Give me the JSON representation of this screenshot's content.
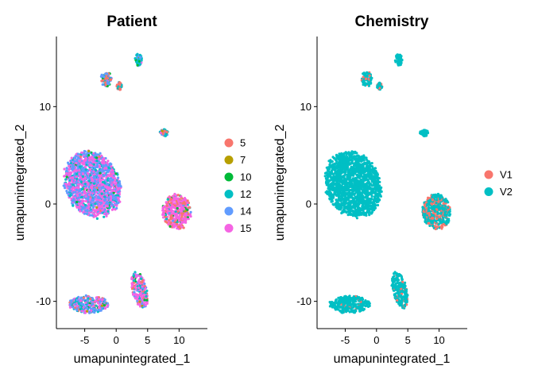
{
  "chart_data": [
    {
      "type": "scatter",
      "title": "Patient",
      "xlabel": "umapunintegrated_1",
      "ylabel": "umapunintegrated_2",
      "xlim": [
        -9.5,
        14.5
      ],
      "ylim": [
        -12.8,
        17.2
      ],
      "xticks": [
        "-5",
        "0",
        "5",
        "10"
      ],
      "xtick_values": [
        -5,
        0,
        5,
        10
      ],
      "yticks": [
        "-10",
        "0",
        "10"
      ],
      "ytick_values": [
        -10,
        0,
        10
      ],
      "legend_position": "right",
      "groups": [
        {
          "label": "5",
          "color": "#F8766D"
        },
        {
          "label": "7",
          "color": "#B79F00"
        },
        {
          "label": "10",
          "color": "#00BA38"
        },
        {
          "label": "12",
          "color": "#00BFC4"
        },
        {
          "label": "14",
          "color": "#619CFF"
        },
        {
          "label": "15",
          "color": "#F564E3"
        }
      ],
      "clusters": [
        {
          "name": "large-left",
          "cx": -3.8,
          "cy": 2.0,
          "rx": 4.6,
          "ry": 3.3,
          "rot": -0.25,
          "mix": [
            0.01,
            0.005,
            0.02,
            0.12,
            0.4,
            0.445
          ]
        },
        {
          "name": "right",
          "cx": 9.6,
          "cy": -0.8,
          "rx": 2.3,
          "ry": 1.8,
          "rot": 0,
          "mix": [
            0.3,
            0.02,
            0.05,
            0.03,
            0.05,
            0.55
          ]
        },
        {
          "name": "bottom-left",
          "cx": -4.3,
          "cy": -10.3,
          "rx": 3.2,
          "ry": 0.9,
          "rot": 0,
          "mix": [
            0.1,
            0.02,
            0.04,
            0.15,
            0.4,
            0.29
          ]
        },
        {
          "name": "bottom-right",
          "cx": 3.7,
          "cy": -8.8,
          "rx": 1.1,
          "ry": 2.0,
          "rot": 0.45,
          "mix": [
            0.1,
            0.02,
            0.1,
            0.15,
            0.2,
            0.43
          ]
        },
        {
          "name": "top-left",
          "cx": -1.6,
          "cy": 12.8,
          "rx": 0.85,
          "ry": 0.8,
          "rot": 0,
          "mix": [
            0.25,
            0.02,
            0.1,
            0.25,
            0.35,
            0.03
          ]
        },
        {
          "name": "top-right",
          "cx": 3.5,
          "cy": 14.8,
          "rx": 0.6,
          "ry": 0.6,
          "rot": 0,
          "mix": [
            0.05,
            0.02,
            0.1,
            0.55,
            0.25,
            0.03
          ]
        },
        {
          "name": "mid-small",
          "cx": 7.6,
          "cy": 7.3,
          "rx": 0.7,
          "ry": 0.35,
          "rot": 0,
          "mix": [
            0.3,
            0.05,
            0.05,
            0.4,
            0.15,
            0.05
          ]
        },
        {
          "name": "small-upper-left",
          "cx": 0.5,
          "cy": 12.1,
          "rx": 0.4,
          "ry": 0.4,
          "rot": 0,
          "mix": [
            0.6,
            0.02,
            0.05,
            0.15,
            0.15,
            0.03
          ]
        }
      ]
    },
    {
      "type": "scatter",
      "title": "Chemistry",
      "xlabel": "umapunintegrated_1",
      "ylabel": "umapunintegrated_2",
      "xlim": [
        -9.5,
        14.5
      ],
      "ylim": [
        -12.8,
        17.2
      ],
      "xticks": [
        "-5",
        "0",
        "5",
        "10"
      ],
      "xtick_values": [
        -5,
        0,
        5,
        10
      ],
      "yticks": [
        "-10",
        "0",
        "10"
      ],
      "ytick_values": [
        -10,
        0,
        10
      ],
      "legend_position": "right",
      "groups": [
        {
          "label": "V1",
          "color": "#F8766D"
        },
        {
          "label": "V2",
          "color": "#00BFC4"
        }
      ],
      "clusters": [
        {
          "name": "large-left",
          "cx": -3.8,
          "cy": 2.0,
          "rx": 4.6,
          "ry": 3.3,
          "rot": -0.25,
          "mix": [
            0.0,
            1.0
          ]
        },
        {
          "name": "right",
          "cx": 9.6,
          "cy": -0.8,
          "rx": 2.3,
          "ry": 1.8,
          "rot": 0,
          "mix": [
            0.35,
            0.65
          ]
        },
        {
          "name": "bottom-left",
          "cx": -4.3,
          "cy": -10.3,
          "rx": 3.2,
          "ry": 0.9,
          "rot": 0,
          "mix": [
            0.04,
            0.96
          ]
        },
        {
          "name": "bottom-right",
          "cx": 3.7,
          "cy": -8.8,
          "rx": 1.1,
          "ry": 2.0,
          "rot": 0.45,
          "mix": [
            0.08,
            0.92
          ]
        },
        {
          "name": "top-left",
          "cx": -1.6,
          "cy": 12.8,
          "rx": 0.85,
          "ry": 0.8,
          "rot": 0,
          "mix": [
            0.1,
            0.9
          ]
        },
        {
          "name": "top-right",
          "cx": 3.5,
          "cy": 14.8,
          "rx": 0.6,
          "ry": 0.6,
          "rot": 0,
          "mix": [
            0.0,
            1.0
          ]
        },
        {
          "name": "mid-small",
          "cx": 7.6,
          "cy": 7.3,
          "rx": 0.7,
          "ry": 0.35,
          "rot": 0,
          "mix": [
            0.0,
            1.0
          ]
        },
        {
          "name": "small-upper-left",
          "cx": 0.5,
          "cy": 12.1,
          "rx": 0.4,
          "ry": 0.4,
          "rot": 0,
          "mix": [
            0.3,
            0.7
          ]
        }
      ]
    }
  ]
}
